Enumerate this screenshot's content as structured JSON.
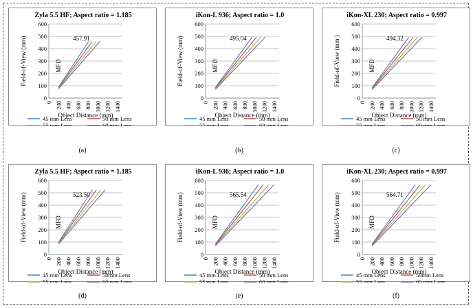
{
  "colors": {
    "lens45": "#4a7ebb",
    "lens50": "#be4b48",
    "lens55": "#98b954",
    "lens60": "#7d60a0",
    "grid": "#b0b0b0",
    "axis": "#7f7f7f"
  },
  "chart_data": [
    {
      "type": "line",
      "caption": "(a)",
      "title": "Zyla 5.5 HF; Aspect ratio = 1.185",
      "xlabel": "Object Distance (mm)",
      "ylabel": "Field-of-View (mm)",
      "mfd_label": "MFD",
      "annotation": "457.91",
      "xlim": [
        0,
        1500
      ],
      "ylim": [
        0,
        600
      ],
      "xticks": [
        0,
        200,
        400,
        600,
        800,
        1000,
        1200,
        1400
      ],
      "yticks": [
        0,
        100,
        200,
        300,
        400,
        500,
        600
      ],
      "legend": [
        "45 mm Lens",
        "50 mm Lens",
        "55 mm Lens",
        "60 mm Lens"
      ],
      "series": [
        {
          "name": "45 mm Lens",
          "x": [
            200,
            810
          ],
          "y": [
            90,
            458
          ]
        },
        {
          "name": "50 mm Lens",
          "x": [
            200,
            885
          ],
          "y": [
            85,
            458
          ]
        },
        {
          "name": "55 mm Lens",
          "x": [
            200,
            960
          ],
          "y": [
            80,
            458
          ]
        },
        {
          "name": "60 mm Lens",
          "x": [
            200,
            1040
          ],
          "y": [
            75,
            458
          ]
        }
      ]
    },
    {
      "type": "line",
      "caption": "(b)",
      "title": "iKon-L 936; Aspect ratio = 1.0",
      "xlabel": "Object Distance (mm)",
      "ylabel": "Field-of-View (mm)",
      "mfd_label": "MFD",
      "annotation": "495.04",
      "xlim": [
        0,
        1500
      ],
      "ylim": [
        0,
        600
      ],
      "xticks": [
        0,
        200,
        400,
        600,
        800,
        1000,
        1200,
        1400
      ],
      "yticks": [
        0,
        100,
        200,
        300,
        400,
        500,
        600
      ],
      "legend": [
        "45 mm Lens",
        "50 mm Lens",
        "55 mm Lens",
        "60 mm Lens"
      ],
      "series": [
        {
          "name": "45 mm Lens",
          "x": [
            200,
            950
          ],
          "y": [
            85,
            495
          ]
        },
        {
          "name": "50 mm Lens",
          "x": [
            200,
            1040
          ],
          "y": [
            80,
            495
          ]
        },
        {
          "name": "55 mm Lens",
          "x": [
            200,
            1130
          ],
          "y": [
            75,
            495
          ]
        },
        {
          "name": "60 mm Lens",
          "x": [
            200,
            1220
          ],
          "y": [
            70,
            495
          ]
        }
      ]
    },
    {
      "type": "line",
      "caption": "(c)",
      "title": "iKon-XL 230; Aspect ratio = 0.997",
      "xlabel": "Object Distance (mm)",
      "ylabel": "Field-of-View (mm )",
      "mfd_label": "MFD",
      "annotation": "494.32",
      "xlim": [
        0,
        1500
      ],
      "ylim": [
        0,
        600
      ],
      "xticks": [
        0,
        200,
        400,
        600,
        800,
        1000,
        1200,
        1400
      ],
      "yticks": [
        0,
        100,
        200,
        300,
        400,
        500,
        600
      ],
      "legend": [
        "45 mm Lens",
        "50 mm Lens",
        "55 mm Lens",
        "60 mm Lens"
      ],
      "series": [
        {
          "name": "45 mm Lens",
          "x": [
            200,
            950
          ],
          "y": [
            85,
            494
          ]
        },
        {
          "name": "50 mm Lens",
          "x": [
            200,
            1040
          ],
          "y": [
            80,
            494
          ]
        },
        {
          "name": "55 mm Lens",
          "x": [
            200,
            1130
          ],
          "y": [
            75,
            494
          ]
        },
        {
          "name": "60 mm Lens",
          "x": [
            200,
            1220
          ],
          "y": [
            70,
            494
          ]
        }
      ]
    },
    {
      "type": "line",
      "caption": "(d)",
      "title": "Zyla 5.5 HF; Aspect ratio = 1.185",
      "xlabel": "Object Distance (mm)",
      "ylabel": "Field-of-View (mm)",
      "mfd_label": "MFD",
      "annotation": "523.50",
      "xlim": [
        0,
        1500
      ],
      "ylim": [
        0,
        600
      ],
      "xticks": [
        0,
        200,
        400,
        600,
        800,
        1000,
        1200,
        1400
      ],
      "yticks": [
        0,
        100,
        200,
        300,
        400,
        500,
        600
      ],
      "legend": [
        "45 mm Lens",
        "50mm Lens",
        "55 mm Lens",
        "60 mm Lens"
      ],
      "series": [
        {
          "name": "45 mm Lens",
          "x": [
            200,
            890
          ],
          "y": [
            100,
            524
          ]
        },
        {
          "name": "50mm Lens",
          "x": [
            200,
            970
          ],
          "y": [
            95,
            524
          ]
        },
        {
          "name": "55 mm Lens",
          "x": [
            200,
            1060
          ],
          "y": [
            90,
            524
          ]
        },
        {
          "name": "60 mm Lens",
          "x": [
            200,
            1150
          ],
          "y": [
            85,
            524
          ]
        }
      ]
    },
    {
      "type": "line",
      "caption": "(e)",
      "title": "iKon-L 936; Aspect ratio = 1.0",
      "xlabel": "Object Distance (mm)",
      "ylabel": "Field-of-View (mm)",
      "mfd_label": "MFD",
      "annotation": "565.54",
      "xlim": [
        0,
        1500
      ],
      "ylim": [
        0,
        600
      ],
      "xticks": [
        0,
        200,
        400,
        600,
        800,
        1000,
        1200,
        1400
      ],
      "yticks": [
        0,
        100,
        200,
        300,
        400,
        500,
        600
      ],
      "legend": [
        "45 mm Lens",
        "50 mm Lens",
        "55 mm Lens",
        "60 mm Lens"
      ],
      "series": [
        {
          "name": "45 mm Lens",
          "x": [
            200,
            1080
          ],
          "y": [
            85,
            566
          ]
        },
        {
          "name": "50 mm Lens",
          "x": [
            200,
            1180
          ],
          "y": [
            80,
            566
          ]
        },
        {
          "name": "55 mm Lens",
          "x": [
            200,
            1290
          ],
          "y": [
            75,
            566
          ]
        },
        {
          "name": "60 mm Lens",
          "x": [
            200,
            1400
          ],
          "y": [
            70,
            566
          ]
        }
      ]
    },
    {
      "type": "line",
      "caption": "(f)",
      "title": "iKon-XL 230; Aspect ratio = 0.997",
      "xlabel": "Object Distance (mm)",
      "ylabel": "Field-of-View (mm)",
      "mfd_label": "MFD",
      "annotation": "564.71",
      "xlim": [
        0,
        1500
      ],
      "ylim": [
        0,
        600
      ],
      "xticks": [
        0,
        200,
        400,
        600,
        800,
        1000,
        1200,
        1400
      ],
      "yticks": [
        0,
        100,
        200,
        300,
        400,
        500,
        600
      ],
      "legend": [
        "45 mm Lens",
        "50mm Lens",
        "55 mm Lens",
        "60 mm Lens"
      ],
      "series": [
        {
          "name": "45 mm Lens",
          "x": [
            200,
            1080
          ],
          "y": [
            85,
            565
          ]
        },
        {
          "name": "50mm Lens",
          "x": [
            200,
            1180
          ],
          "y": [
            80,
            565
          ]
        },
        {
          "name": "55 mm Lens",
          "x": [
            200,
            1290
          ],
          "y": [
            75,
            565
          ]
        },
        {
          "name": "60 mm Lens",
          "x": [
            200,
            1400
          ],
          "y": [
            70,
            565
          ]
        }
      ]
    }
  ]
}
